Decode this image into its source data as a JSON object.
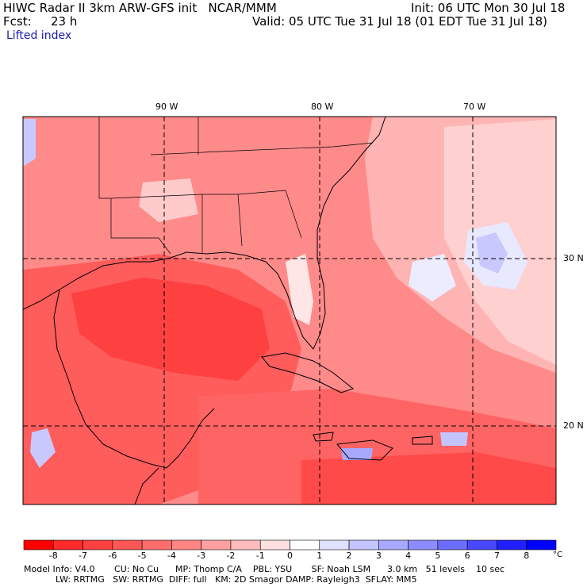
{
  "header": {
    "title": "HIWC Radar II 3km ARW-GFS init   NCAR/MMM",
    "init": "Init: 06 UTC Mon 30 Jul 18",
    "fcst_label": "Fcst:",
    "fcst_value": "23 h",
    "valid": "Valid: 05 UTC Tue 31 Jul 18 (01 EDT Tue 31 Jul 18)",
    "field": "Lifted index"
  },
  "map": {
    "lon_labels": [
      "90 W",
      "80 W",
      "70 W"
    ],
    "lat_labels": [
      "30 N",
      "20 N"
    ]
  },
  "colorbar": {
    "ticks": [
      "-8",
      "-7",
      "-6",
      "-5",
      "-4",
      "-3",
      "-2",
      "-1",
      "0",
      "1",
      "2",
      "3",
      "4",
      "5",
      "6",
      "7",
      "8"
    ],
    "unit": "°C",
    "colors": [
      "#ff0000",
      "#ff2a2a",
      "#ff4040",
      "#ff5656",
      "#ff6c6c",
      "#ff8484",
      "#ffa0a0",
      "#ffbcbc",
      "#ffe0e0",
      "#ffffff",
      "#e0e0ff",
      "#c4c4ff",
      "#a8a8ff",
      "#8c8cff",
      "#6c6cff",
      "#4848ff",
      "#2020ff",
      "#0000ff"
    ]
  },
  "footer": {
    "line1": "Model Info: V4.0       CU: No Cu      MP: Thomp C/A    PBL: YSU       SF: Noah LSM      3.0 km   51 levels    10 sec",
    "line2": "LW: RRTMG   SW: RRTMG  DIFF: full   KM: 2D Smagor DAMP: Rayleigh3  SFLAY: MM5"
  }
}
